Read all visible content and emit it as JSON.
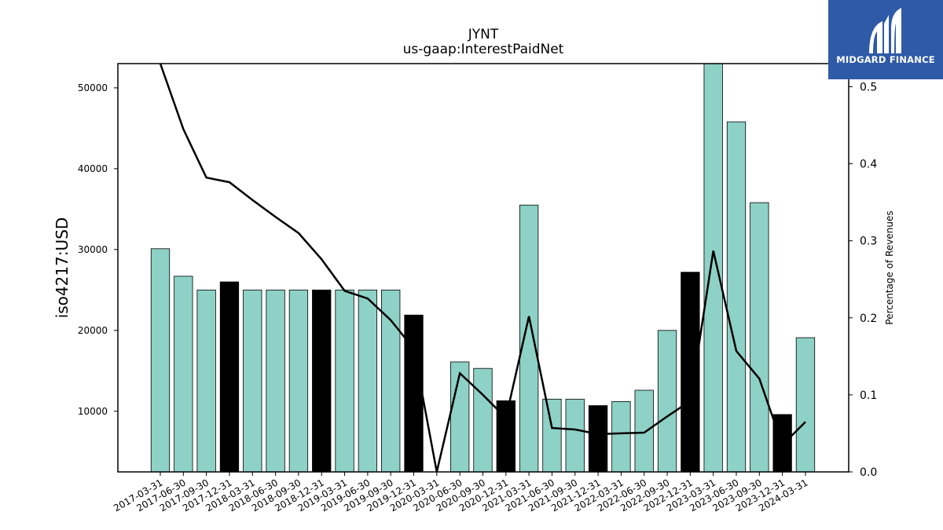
{
  "chart_data": {
    "type": "bar",
    "title": "JYNT",
    "subtitle": "us-gaap:InterestPaidNet",
    "ylabel": "iso4217:USD",
    "y2label": "Percentage of Revenues",
    "ylim": [
      2500,
      53000
    ],
    "y2lim": [
      0,
      0.53
    ],
    "yticks": [
      10000,
      20000,
      30000,
      40000,
      50000
    ],
    "y2ticks": [
      "0.0",
      "0.1",
      "0.2",
      "0.3",
      "0.4",
      "0.5"
    ],
    "categories": [
      "2017-03-31",
      "2017-06-30",
      "2017-09-30",
      "2017-12-31",
      "2018-03-31",
      "2018-06-30",
      "2018-09-30",
      "2018-12-31",
      "2019-03-31",
      "2019-06-30",
      "2019-09-30",
      "2019-12-31",
      "2020-03-31",
      "2020-06-30",
      "2020-09-30",
      "2020-12-31",
      "2021-03-31",
      "2021-06-30",
      "2021-09-30",
      "2021-12-31",
      "2022-03-31",
      "2022-06-30",
      "2022-09-30",
      "2022-12-31",
      "2023-03-31",
      "2023-06-30",
      "2023-09-30",
      "2023-12-31",
      "2024-03-31"
    ],
    "series": [
      {
        "type": "bar",
        "values": [
          30100,
          26700,
          25000,
          26000,
          25000,
          25000,
          25000,
          25000,
          25000,
          25000,
          25000,
          21900,
          null,
          16100,
          15300,
          11300,
          35500,
          11500,
          11500,
          10700,
          11200,
          12600,
          20000,
          27200,
          53000,
          45800,
          35800,
          9600,
          19100
        ],
        "colors": [
          "#8ed1c6",
          "#8ed1c6",
          "#8ed1c6",
          "#000000",
          "#8ed1c6",
          "#8ed1c6",
          "#8ed1c6",
          "#000000",
          "#8ed1c6",
          "#8ed1c6",
          "#8ed1c6",
          "#000000",
          "#8ed1c6",
          "#8ed1c6",
          "#8ed1c6",
          "#000000",
          "#8ed1c6",
          "#8ed1c6",
          "#8ed1c6",
          "#000000",
          "#8ed1c6",
          "#8ed1c6",
          "#8ed1c6",
          "#000000",
          "#8ed1c6",
          "#8ed1c6",
          "#8ed1c6",
          "#000000",
          "#8ed1c6"
        ]
      },
      {
        "type": "line",
        "axis": "right",
        "values": [
          0.53,
          0.445,
          0.382,
          0.376,
          0.353,
          0.331,
          0.31,
          0.276,
          0.235,
          0.225,
          0.197,
          0.16,
          0.0,
          0.128,
          0.1,
          0.07,
          0.202,
          0.057,
          0.055,
          0.049,
          0.05,
          0.051,
          0.072,
          0.092,
          0.287,
          0.157,
          0.121,
          0.035,
          0.065
        ],
        "color": "#000000"
      }
    ],
    "grid": false
  },
  "logo": {
    "text": "MIDGARD FINANCE",
    "background": "#2f5aa8"
  }
}
